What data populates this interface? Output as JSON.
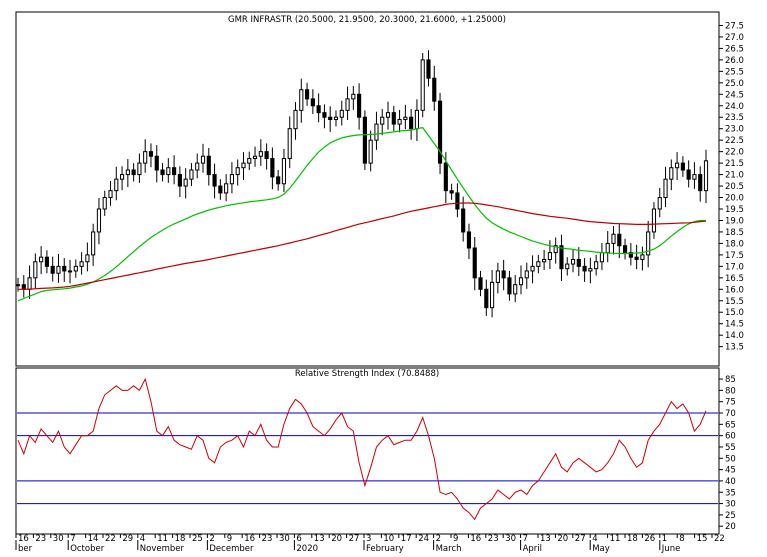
{
  "chart_data": [
    {
      "type": "candlestick",
      "title": "GMR INFRASTR (20.5000, 21.9500, 20.3000, 21.6000, +1.25000)",
      "ylim": [
        12.7,
        28.0
      ],
      "yticks": [
        13.5,
        14.0,
        14.5,
        15.0,
        15.5,
        16.0,
        16.5,
        17.0,
        17.5,
        18.0,
        18.5,
        19.0,
        19.5,
        20.0,
        20.5,
        21.0,
        21.5,
        22.0,
        22.5,
        23.0,
        23.5,
        24.0,
        24.5,
        25.0,
        25.5,
        26.0,
        26.5,
        27.0,
        27.5
      ],
      "ytick_labels": [
        "13.5",
        "14.0",
        "14.5",
        "15.0",
        "15.5",
        "16.0",
        "16.5",
        "17.0",
        "17.5",
        "18.0",
        "18.5",
        "19.0",
        "19.5",
        "20.0",
        "20.5",
        "21.0",
        "21.5",
        "22.0",
        "22.5",
        "23.0",
        "23.5",
        "24.0",
        "24.5",
        "25.0",
        "25.5",
        "26.0",
        "26.5",
        "27.0",
        "27.5"
      ],
      "grid": false,
      "x_day_labels": [
        "16",
        "23",
        "30",
        "7",
        "14",
        "22",
        "29",
        "4",
        "11",
        "18",
        "25",
        "2",
        "9",
        "16",
        "23",
        "30",
        "6",
        "13",
        "20",
        "27",
        "3",
        "10",
        "17",
        "24",
        "2",
        "9",
        "16",
        "23",
        "30",
        "7",
        "13",
        "20",
        "27",
        "4",
        "11",
        "18",
        "26",
        "1",
        "8",
        "15",
        "22"
      ],
      "x_month_labels": [
        "ber",
        "October",
        "November",
        "December",
        "2020",
        "February",
        "March",
        "April",
        "May",
        "June"
      ],
      "close": [
        16.2,
        16.0,
        16.5,
        17.2,
        17.4,
        17.0,
        16.7,
        17.0,
        16.8,
        16.8,
        17.0,
        17.2,
        17.5,
        18.5,
        19.5,
        20.0,
        20.3,
        20.8,
        21.0,
        21.2,
        21.0,
        21.5,
        22.0,
        21.8,
        21.2,
        21.0,
        21.3,
        21.0,
        20.5,
        20.8,
        21.2,
        21.5,
        21.8,
        21.0,
        20.5,
        20.2,
        20.6,
        21.0,
        21.3,
        21.5,
        21.7,
        21.8,
        22.0,
        21.7,
        20.9,
        20.6,
        21.7,
        23.0,
        23.8,
        24.7,
        24.3,
        24.0,
        23.7,
        23.5,
        23.4,
        23.5,
        23.8,
        24.3,
        24.5,
        23.5,
        21.5,
        22.5,
        23.2,
        23.5,
        23.7,
        23.2,
        23.4,
        23.5,
        23.0,
        23.8,
        26.0,
        25.2,
        24.2,
        21.5,
        20.3,
        20.2,
        19.5,
        18.5,
        17.8,
        16.5,
        16.0,
        15.2,
        16.3,
        16.8,
        16.5,
        15.8,
        16.2,
        16.5,
        16.8,
        17.0,
        17.2,
        17.3,
        17.6,
        17.9,
        16.9,
        17.1,
        17.3,
        17.0,
        16.8,
        16.9,
        17.2,
        17.6,
        18.0,
        18.4,
        17.9,
        17.6,
        17.4,
        17.3,
        17.5,
        18.5,
        19.5,
        20.0,
        20.8,
        21.3,
        21.5,
        21.2,
        20.8,
        21.0,
        20.3,
        21.6
      ],
      "series": [
        {
          "name": "",
          "color": "#00c000",
          "values": [
            15.5,
            15.6,
            15.7,
            15.8,
            15.9,
            15.95,
            15.98,
            16.0,
            16.02,
            16.05,
            16.1,
            16.15,
            16.22,
            16.32,
            16.45,
            16.6,
            16.78,
            16.98,
            17.2,
            17.42,
            17.64,
            17.86,
            18.06,
            18.26,
            18.42,
            18.58,
            18.72,
            18.85,
            18.96,
            19.07,
            19.18,
            19.28,
            19.37,
            19.45,
            19.52,
            19.58,
            19.64,
            19.69,
            19.73,
            19.77,
            19.81,
            19.84,
            19.87,
            19.9,
            19.94,
            20.0,
            20.15,
            20.4,
            20.72,
            21.06,
            21.4,
            21.7,
            21.98,
            22.2,
            22.38,
            22.5,
            22.6,
            22.66,
            22.7,
            22.73,
            22.74,
            22.75,
            22.77,
            22.8,
            22.83,
            22.86,
            22.9,
            22.92,
            22.94,
            23.0,
            23.05,
            22.7,
            22.35,
            22.0,
            21.6,
            21.2,
            20.8,
            20.42,
            20.05,
            19.7,
            19.38,
            19.1,
            18.9,
            18.75,
            18.62,
            18.5,
            18.4,
            18.3,
            18.2,
            18.1,
            18.03,
            17.96,
            17.9,
            17.85,
            17.8,
            17.77,
            17.74,
            17.7,
            17.68,
            17.65,
            17.62,
            17.6,
            17.58,
            17.57,
            17.56,
            17.56,
            17.57,
            17.58,
            17.6,
            17.66,
            17.75,
            17.9,
            18.1,
            18.32,
            18.52,
            18.7,
            18.85,
            18.95,
            19.0,
            19.0
          ]
        },
        {
          "name": "",
          "color": "#c00000",
          "values": [
            16.0,
            16.0,
            16.01,
            16.02,
            16.04,
            16.05,
            16.06,
            16.08,
            16.1,
            16.13,
            16.17,
            16.22,
            16.27,
            16.32,
            16.37,
            16.42,
            16.47,
            16.52,
            16.57,
            16.62,
            16.67,
            16.72,
            16.77,
            16.82,
            16.88,
            16.93,
            16.98,
            17.03,
            17.08,
            17.13,
            17.17,
            17.21,
            17.25,
            17.3,
            17.35,
            17.4,
            17.45,
            17.5,
            17.55,
            17.6,
            17.65,
            17.7,
            17.75,
            17.8,
            17.85,
            17.9,
            17.96,
            18.02,
            18.08,
            18.14,
            18.2,
            18.27,
            18.34,
            18.41,
            18.48,
            18.56,
            18.63,
            18.7,
            18.77,
            18.84,
            18.9,
            18.96,
            19.02,
            19.08,
            19.14,
            19.2,
            19.27,
            19.34,
            19.4,
            19.45,
            19.5,
            19.55,
            19.6,
            19.65,
            19.7,
            19.73,
            19.75,
            19.76,
            19.76,
            19.75,
            19.72,
            19.68,
            19.64,
            19.6,
            19.55,
            19.5,
            19.45,
            19.4,
            19.35,
            19.3,
            19.26,
            19.22,
            19.18,
            19.15,
            19.12,
            19.1,
            19.06,
            19.02,
            18.98,
            18.95,
            18.93,
            18.91,
            18.89,
            18.87,
            18.86,
            18.85,
            18.84,
            18.83,
            18.83,
            18.83,
            18.84,
            18.85,
            18.86,
            18.87,
            18.88,
            18.89,
            18.9,
            18.92,
            18.95,
            18.97
          ]
        }
      ]
    },
    {
      "type": "line",
      "title": "Relative Strength Index (70.8488)",
      "ylim": [
        17,
        89
      ],
      "yticks": [
        20,
        25,
        30,
        35,
        40,
        45,
        50,
        55,
        60,
        65,
        70,
        75,
        80,
        85
      ],
      "ytick_labels": [
        "20",
        "25",
        "30",
        "35",
        "40",
        "45",
        "50",
        "55",
        "60",
        "65",
        "70",
        "75",
        "80",
        "85"
      ],
      "reference_lines": [
        {
          "value": 70,
          "color": "#0000c0"
        },
        {
          "value": 60,
          "color": "#0000c0"
        },
        {
          "value": 40,
          "color": "#0000c0"
        },
        {
          "value": 30,
          "color": "#0000c0"
        }
      ],
      "series": [
        {
          "name": "",
          "color": "#d00000",
          "values": [
            58,
            52,
            60,
            57,
            63,
            60,
            57,
            62,
            55,
            52,
            56,
            60,
            60,
            62,
            72,
            78,
            80,
            82,
            80,
            80,
            82,
            80,
            85,
            75,
            62,
            60,
            64,
            58,
            56,
            55,
            54,
            60,
            58,
            50,
            48,
            55,
            57,
            58,
            60,
            55,
            62,
            60,
            65,
            58,
            55,
            55,
            65,
            72,
            76,
            74,
            70,
            64,
            62,
            60,
            63,
            67,
            70,
            64,
            62,
            48,
            38,
            46,
            55,
            58,
            60,
            56,
            57,
            58,
            58,
            62,
            68,
            60,
            50,
            35,
            34,
            35,
            32,
            28,
            26,
            23,
            28,
            30,
            32,
            36,
            34,
            32,
            35,
            36,
            34,
            38,
            40,
            44,
            48,
            52,
            46,
            44,
            48,
            50,
            48,
            46,
            44,
            45,
            48,
            52,
            58,
            55,
            50,
            46,
            48,
            58,
            62,
            65,
            70,
            75,
            72,
            74,
            70,
            62,
            65,
            71
          ]
        }
      ]
    }
  ]
}
